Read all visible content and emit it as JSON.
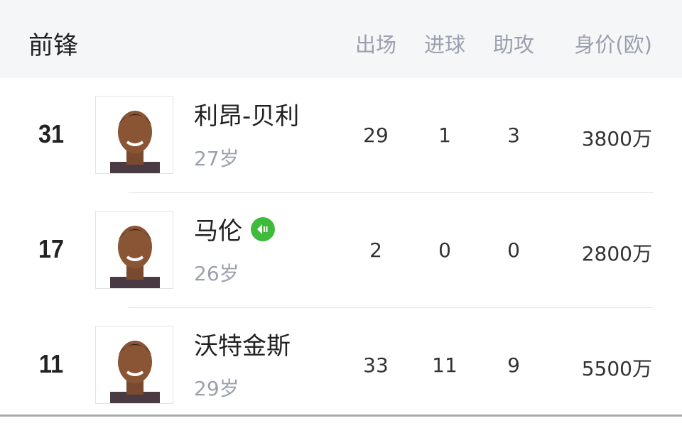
{
  "header": {
    "title": "前锋",
    "columns": [
      "出场",
      "进球",
      "助攻",
      "身价(欧)"
    ]
  },
  "players": [
    {
      "number": "31",
      "name": "利昂-贝利",
      "age": "27岁",
      "apps": "29",
      "goals": "1",
      "assists": "3",
      "value": "3800万",
      "badge": null
    },
    {
      "number": "17",
      "name": "马伦",
      "age": "26岁",
      "apps": "2",
      "goals": "0",
      "assists": "0",
      "value": "2800万",
      "badge": "green-loan-in-icon"
    },
    {
      "number": "11",
      "name": "沃特金斯",
      "age": "29岁",
      "apps": "33",
      "goals": "11",
      "assists": "9",
      "value": "5500万",
      "badge": null
    }
  ],
  "colors": {
    "header_bg": "#f5f6f8",
    "muted": "#9aa0ad",
    "badge": "#3fbb3b"
  }
}
